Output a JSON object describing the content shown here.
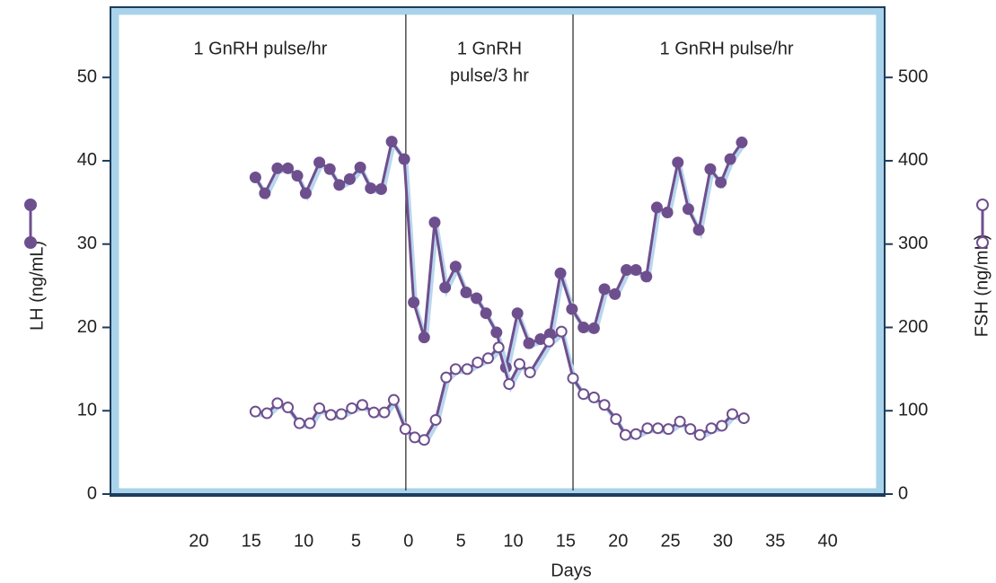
{
  "chart_data": {
    "type": "line",
    "xlabel": "Days",
    "ylabel": "LH (ng/mL)",
    "y2label": "FSH (ng/mL)",
    "xlim": [
      -28,
      45
    ],
    "ylim": [
      0,
      58
    ],
    "y2lim": [
      0,
      580
    ],
    "xticks": [
      {
        "value": -20,
        "label": "20"
      },
      {
        "value": -15,
        "label": "15"
      },
      {
        "value": -10,
        "label": "10"
      },
      {
        "value": -5,
        "label": "5"
      },
      0,
      5,
      10,
      15,
      20,
      25,
      30,
      35,
      40
    ],
    "yticks": [
      0,
      10,
      20,
      30,
      40,
      50
    ],
    "y2ticks": [
      0,
      100,
      200,
      300,
      400,
      500
    ],
    "phase_boundaries": [
      -0.25,
      15.7
    ],
    "phase_labels": [
      [
        "1 GnRH pulse/hr"
      ],
      [
        "1 GnRH",
        "pulse/3 hr"
      ],
      [
        "1 GnRH pulse/hr"
      ]
    ],
    "series": [
      {
        "name": "LH",
        "color": "#6e4f8e",
        "marker": "filled",
        "axis": "y",
        "x": [
          -14.6,
          -13.7,
          -12.5,
          -11.5,
          -10.6,
          -9.8,
          -8.5,
          -7.5,
          -6.6,
          -5.6,
          -4.6,
          -3.6,
          -2.6,
          -1.6,
          -0.4,
          0.5,
          1.5,
          2.5,
          3.5,
          4.5,
          5.5,
          6.5,
          7.4,
          8.4,
          9.3,
          10.4,
          11.5,
          12.6,
          13.5,
          14.5,
          15.6,
          16.7,
          17.7,
          18.7,
          19.7,
          20.8,
          21.7,
          22.7,
          23.7,
          24.7,
          25.7,
          26.7,
          27.7,
          28.8,
          29.8,
          30.7,
          31.8
        ],
        "values": [
          38.0,
          36.1,
          39.1,
          39.1,
          38.2,
          36.1,
          39.8,
          39.0,
          37.1,
          37.8,
          39.2,
          36.7,
          36.6,
          42.3,
          40.2,
          23.0,
          18.8,
          32.6,
          24.8,
          27.3,
          24.2,
          23.5,
          21.7,
          19.4,
          15.2,
          21.7,
          18.1,
          18.6,
          19.2,
          26.5,
          22.2,
          20.0,
          19.9,
          24.6,
          24.0,
          26.9,
          26.9,
          26.1,
          34.4,
          33.8,
          39.8,
          34.2,
          31.7,
          39.0,
          37.4,
          40.2,
          42.2
        ]
      },
      {
        "name": "FSH",
        "color": "#6e4f8e",
        "marker": "open",
        "axis": "y2",
        "x": [
          -14.6,
          -13.5,
          -12.5,
          -11.5,
          -10.4,
          -9.4,
          -8.5,
          -7.4,
          -6.4,
          -5.4,
          -4.4,
          -3.3,
          -2.3,
          -1.4,
          -0.3,
          0.6,
          1.5,
          2.6,
          3.6,
          4.5,
          5.6,
          6.6,
          7.6,
          8.6,
          9.6,
          10.6,
          11.6,
          13.4,
          14.6,
          15.7,
          16.7,
          17.7,
          18.7,
          19.8,
          20.7,
          21.7,
          22.8,
          23.8,
          24.8,
          25.9,
          26.9,
          27.8,
          28.9,
          29.9,
          30.9,
          32.0
        ],
        "values": [
          99,
          97,
          109,
          104,
          85,
          85,
          103,
          95,
          96,
          103,
          107,
          98,
          98,
          113,
          78,
          68,
          65,
          89,
          140,
          150,
          150,
          158,
          163,
          176,
          132,
          156,
          146,
          183,
          195,
          139,
          120,
          116,
          107,
          90,
          71,
          72,
          79,
          79,
          78,
          87,
          78,
          71,
          79,
          82,
          96,
          91
        ]
      }
    ]
  }
}
